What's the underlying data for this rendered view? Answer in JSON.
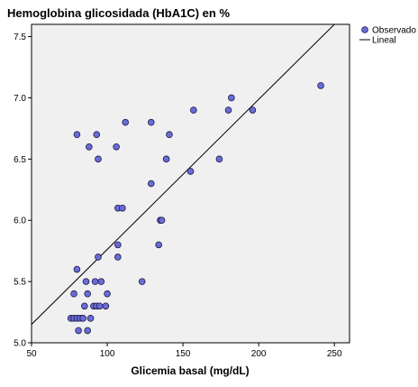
{
  "chart_data": {
    "type": "scatter",
    "title": "Hemoglobina glicosidada (HbA1C) en %",
    "xlabel": "Glicemia basal (mg/dL)",
    "ylabel": "",
    "xlim": [
      50,
      260
    ],
    "ylim": [
      5.0,
      7.6
    ],
    "xticks": [
      50,
      100,
      150,
      200,
      250
    ],
    "yticks": [
      5.0,
      5.5,
      6.0,
      6.5,
      7.0,
      7.5
    ],
    "xtick_labels": [
      "50",
      "100",
      "150",
      "200",
      "250"
    ],
    "ytick_labels": [
      "5.0",
      "5.5",
      "6.0",
      "6.5",
      "7.0",
      "7.5"
    ],
    "grid": false,
    "legend_position": "top-right",
    "colors": {
      "point_fill": "#6a6cd6",
      "point_stroke": "#1a1a4a",
      "line": "#000000",
      "plot_bg": "#f0f0f0"
    },
    "series": [
      {
        "name": "Observado",
        "kind": "points",
        "points": [
          [
            76,
            5.2
          ],
          [
            78,
            5.2
          ],
          [
            78,
            5.4
          ],
          [
            80,
            5.2
          ],
          [
            81,
            5.1
          ],
          [
            82,
            5.2
          ],
          [
            84,
            5.2
          ],
          [
            85,
            5.3
          ],
          [
            86,
            5.5
          ],
          [
            87,
            5.1
          ],
          [
            87,
            5.4
          ],
          [
            89,
            5.2
          ],
          [
            91,
            5.3
          ],
          [
            92,
            5.5
          ],
          [
            93,
            5.3
          ],
          [
            94,
            5.7
          ],
          [
            95,
            5.3
          ],
          [
            96,
            5.5
          ],
          [
            99,
            5.3
          ],
          [
            100,
            5.4
          ],
          [
            80,
            5.6
          ],
          [
            80,
            6.7
          ],
          [
            88,
            6.6
          ],
          [
            93,
            6.7
          ],
          [
            94,
            6.5
          ],
          [
            106,
            6.6
          ],
          [
            107,
            6.1
          ],
          [
            110,
            6.1
          ],
          [
            107,
            5.8
          ],
          [
            107,
            5.7
          ],
          [
            112,
            6.8
          ],
          [
            123,
            5.5
          ],
          [
            129,
            6.3
          ],
          [
            129,
            6.8
          ],
          [
            134,
            5.8
          ],
          [
            135,
            6.0
          ],
          [
            136,
            6.0
          ],
          [
            139,
            6.5
          ],
          [
            141,
            6.7
          ],
          [
            155,
            6.4
          ],
          [
            157,
            6.9
          ],
          [
            174,
            6.5
          ],
          [
            180,
            6.9
          ],
          [
            182,
            7.0
          ],
          [
            196,
            6.9
          ],
          [
            241,
            7.1
          ]
        ]
      },
      {
        "name": "Lineal",
        "kind": "line",
        "points": [
          [
            50,
            5.15
          ],
          [
            250,
            7.6
          ]
        ]
      }
    ]
  }
}
